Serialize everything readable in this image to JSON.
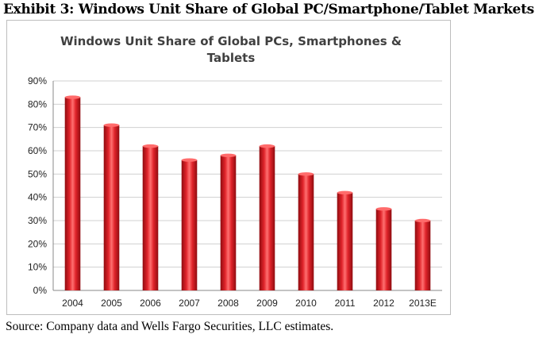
{
  "exhibit_title": "Exhibit 3: Windows Unit Share of Global PC/Smartphone/Tablet Markets",
  "source_note": "Source: Company data and Wells Fargo Securities, LLC estimates.",
  "colors": {
    "bar": "#c8141a",
    "bar_highlight": "#ff6b6b",
    "gridline": "#d0d0d0",
    "axis": "#888888"
  },
  "chart_data": {
    "type": "bar",
    "title_lines": [
      "Windows Unit Share of Global PCs, Smartphones &",
      "Tablets"
    ],
    "categories": [
      "2004",
      "2005",
      "2006",
      "2007",
      "2008",
      "2009",
      "2010",
      "2011",
      "2012",
      "2013E"
    ],
    "values": [
      83,
      71,
      62,
      56,
      58,
      62,
      50,
      42,
      35,
      30
    ],
    "ylim": [
      0,
      90
    ],
    "yticks": [
      "0%",
      "10%",
      "20%",
      "30%",
      "40%",
      "50%",
      "60%",
      "70%",
      "80%",
      "90%"
    ],
    "grid": true,
    "legend": "none"
  }
}
